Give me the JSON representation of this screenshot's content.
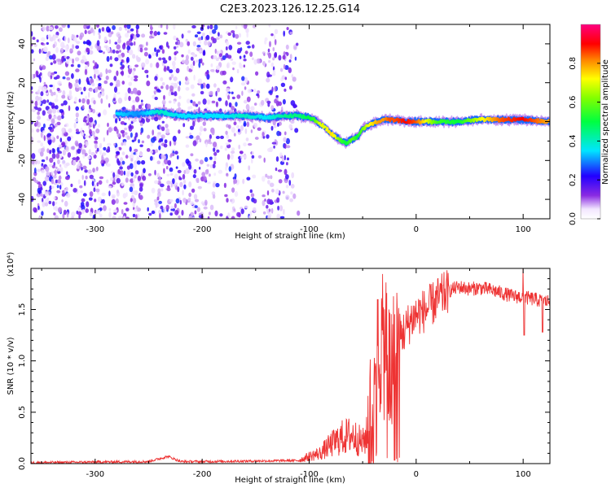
{
  "title": "C2E3.2023.126.12.25.G14",
  "colors": {
    "snr_line": "#ee3333",
    "axis": "#000000"
  },
  "chart_data": [
    {
      "type": "heatmap",
      "title": "",
      "xlabel": "Height of straight line (km)",
      "ylabel": "Frequency (Hz)",
      "xlim": [
        -360,
        125
      ],
      "ylim": [
        -50,
        50
      ],
      "xticks": [
        -300,
        -200,
        -100,
        0,
        100
      ],
      "xtick_labels": [
        "-300",
        "-200",
        "-100",
        "0",
        "100"
      ],
      "yticks": [
        -40,
        -20,
        0,
        20,
        40
      ],
      "ytick_labels": [
        "-40",
        "-20",
        "0",
        "20",
        "40"
      ],
      "colorbar": {
        "label": "Normalized spectral amplitude",
        "range": [
          0,
          1
        ],
        "ticks": [
          0.0,
          0.2,
          0.4,
          0.6,
          0.8
        ],
        "tick_labels": [
          "0.0",
          "0.2",
          "0.4",
          "0.6",
          "0.8"
        ],
        "colormap": "rainbow (white → purple → blue → cyan → green → yellow → red → magenta)"
      },
      "ridge": {
        "description": "dominant frequency line vs. height",
        "x": [
          -280,
          -260,
          -240,
          -220,
          -200,
          -180,
          -160,
          -140,
          -120,
          -110,
          -100,
          -95,
          -90,
          -85,
          -80,
          -75,
          -70,
          -65,
          -60,
          -55,
          -50,
          -45,
          -40,
          -35,
          -30,
          -25,
          -20,
          -10,
          0,
          20,
          40,
          60,
          80,
          100,
          120
        ],
        "y": [
          4,
          4,
          5,
          3,
          3,
          3,
          3,
          2,
          3,
          3,
          2,
          1,
          -1,
          -3,
          -6,
          -8,
          -10,
          -11,
          -9,
          -8,
          -4,
          -2,
          -1,
          0,
          1,
          1,
          1,
          0,
          0,
          0,
          0,
          1,
          1,
          1,
          0
        ],
        "amplitude": [
          0.35,
          0.3,
          0.4,
          0.35,
          0.35,
          0.35,
          0.4,
          0.35,
          0.45,
          0.45,
          0.5,
          0.55,
          0.7,
          0.7,
          0.75,
          0.7,
          0.55,
          0.5,
          0.6,
          0.5,
          0.6,
          0.7,
          0.75,
          0.8,
          0.8,
          0.85,
          0.85,
          0.9,
          0.85,
          0.55,
          0.5,
          0.7,
          0.85,
          0.9,
          0.8
        ]
      },
      "noise_region": {
        "x_range": [
          -360,
          -110
        ],
        "y_range": [
          -50,
          50
        ],
        "amplitude_range": [
          0.05,
          0.25
        ]
      }
    },
    {
      "type": "line",
      "title": "",
      "xlabel": "Height of straight line (km)",
      "ylabel": "SNR (10 * v/v)",
      "scale_label": "(x10⁴)",
      "xlim": [
        -360,
        125
      ],
      "ylim": [
        0,
        19000
      ],
      "xticks": [
        -300,
        -200,
        -100,
        0,
        100
      ],
      "xtick_labels": [
        "-300",
        "-200",
        "-100",
        "0",
        "100"
      ],
      "yticks": [
        0,
        5000,
        10000,
        15000
      ],
      "ytick_labels": [
        "0.0",
        "0.5",
        "1.0",
        "1.5"
      ],
      "series": [
        {
          "name": "",
          "x": [
            -360,
            -300,
            -250,
            -232,
            -220,
            -200,
            -150,
            -110,
            -100,
            -90,
            -80,
            -70,
            -60,
            -50,
            -45,
            -40,
            -36,
            -33,
            -30,
            -28,
            -25,
            -22,
            -20,
            -15,
            -10,
            -5,
            0,
            10,
            20,
            30,
            40,
            50,
            60,
            70,
            80,
            90,
            100,
            105,
            110,
            115,
            120,
            125
          ],
          "y": [
            100,
            150,
            200,
            700,
            200,
            200,
            250,
            300,
            700,
            1000,
            1800,
            2500,
            2800,
            2000,
            3000,
            5000,
            9000,
            12000,
            11000,
            13000,
            8000,
            9500,
            11000,
            12500,
            13000,
            14000,
            14500,
            15000,
            16000,
            16800,
            17200,
            17000,
            17100,
            16900,
            16600,
            16300,
            16200,
            16100,
            16000,
            15900,
            15800,
            15800
          ],
          "spikes": [
            {
              "x": 100,
              "y": 19000
            },
            {
              "x": 101,
              "y": 12500
            },
            {
              "x": 118,
              "y": 12800
            },
            {
              "x": -36,
              "y": 16000
            },
            {
              "x": -25,
              "y": 15000
            },
            {
              "x": -20,
              "y": 300
            }
          ],
          "noise_level_above_50km": 700
        }
      ]
    }
  ]
}
